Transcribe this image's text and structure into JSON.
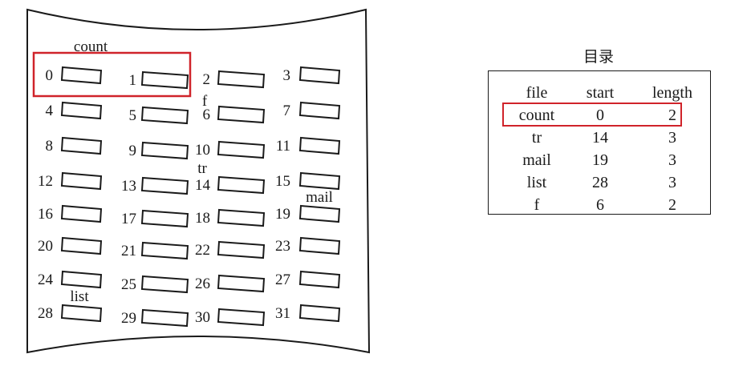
{
  "disk": {
    "block_numbers": [
      "0",
      "1",
      "2",
      "3",
      "4",
      "5",
      "6",
      "7",
      "8",
      "9",
      "10",
      "11",
      "12",
      "13",
      "14",
      "15",
      "16",
      "17",
      "18",
      "19",
      "20",
      "21",
      "22",
      "23",
      "24",
      "25",
      "26",
      "27",
      "28",
      "29",
      "30",
      "31"
    ],
    "file_labels": [
      "count",
      "f",
      "tr",
      "mail",
      "list"
    ]
  },
  "directory": {
    "title": "目录",
    "headers": [
      "file",
      "start",
      "length"
    ],
    "rows": [
      [
        "count",
        "0",
        "2"
      ],
      [
        "tr",
        "14",
        "3"
      ],
      [
        "mail",
        "19",
        "3"
      ],
      [
        "list",
        "28",
        "3"
      ],
      [
        "f",
        "6",
        "2"
      ]
    ]
  },
  "highlight_color": "#d0232a"
}
